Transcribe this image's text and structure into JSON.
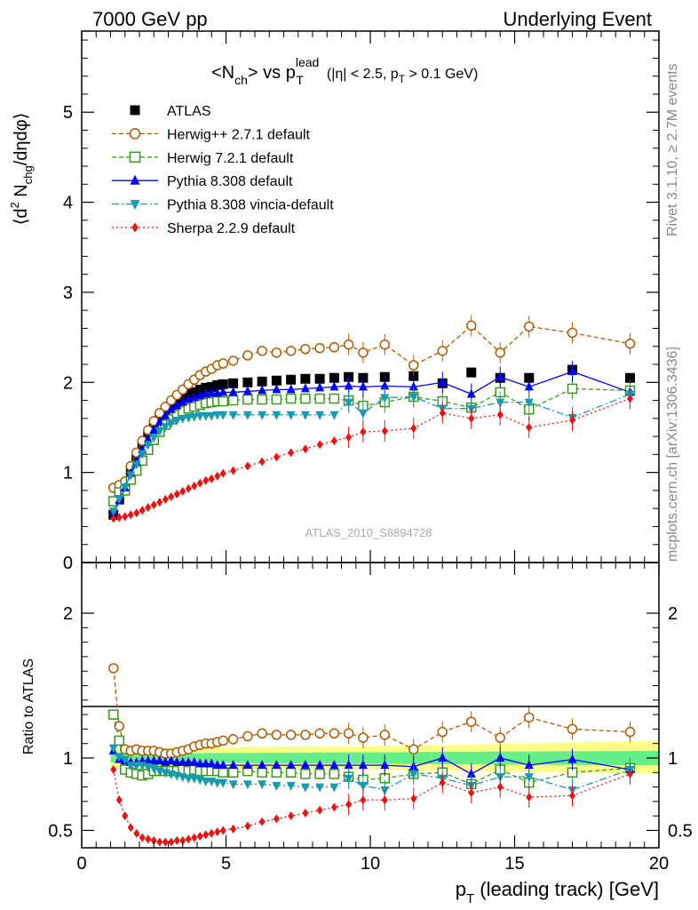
{
  "header": {
    "left": "7000 GeV pp",
    "right": "Underlying Event"
  },
  "side_text": {
    "rivet": "Rivet 3.1.10, ≥ 2.7M events",
    "mcplots": "mcplots.cern.ch [arXiv:1306.3436]"
  },
  "watermark": "ATLAS_2010_S8894728",
  "chart_data": [
    {
      "type": "scatter",
      "title_parts": {
        "main": "<N",
        "main_sub": "ch",
        "mid": "> vs p",
        "sup": "lead",
        "sub": "T",
        "cuts": "(|η| < 2.5, p",
        "cuts_sub": "T",
        "cuts_end": " > 0.1 GeV)"
      },
      "ylabel_parts": {
        "a": "⟨d",
        "sup": "2",
        "b": " N",
        "sub": "chg",
        "c": "/dηdφ⟩"
      },
      "xlim": [
        0,
        20
      ],
      "ylim": [
        0,
        5.9
      ],
      "y_ticks": [
        "0",
        "1",
        "2",
        "3",
        "4",
        "5"
      ],
      "legend_position": "top-left",
      "x": [
        1.1,
        1.3,
        1.5,
        1.7,
        1.9,
        2.1,
        2.3,
        2.5,
        2.7,
        2.9,
        3.1,
        3.3,
        3.5,
        3.7,
        3.9,
        4.1,
        4.3,
        4.5,
        4.7,
        4.9,
        5.25,
        5.75,
        6.25,
        6.75,
        7.25,
        7.75,
        8.25,
        8.75,
        9.25,
        9.75,
        10.5,
        11.5,
        12.5,
        13.5,
        14.5,
        15.5,
        17.0,
        19.0
      ],
      "series": [
        {
          "name": "ATLAS",
          "color": "#000000",
          "marker": "square-filled",
          "values": [
            0.53,
            0.7,
            0.85,
            1.02,
            1.15,
            1.28,
            1.4,
            1.5,
            1.6,
            1.68,
            1.74,
            1.79,
            1.83,
            1.87,
            1.89,
            1.92,
            1.94,
            1.95,
            1.97,
            1.98,
            1.99,
            2.0,
            2.01,
            2.02,
            2.03,
            2.04,
            2.04,
            2.05,
            2.06,
            2.05,
            2.06,
            2.07,
            1.99,
            2.11,
            2.05,
            2.05,
            2.14,
            2.05
          ]
        },
        {
          "name": "Herwig++ 2.7.1 default",
          "color": "#b05a00",
          "marker": "circle-open",
          "values": [
            0.83,
            0.86,
            0.9,
            1.07,
            1.22,
            1.35,
            1.47,
            1.57,
            1.66,
            1.73,
            1.8,
            1.86,
            1.92,
            1.98,
            2.03,
            2.08,
            2.12,
            2.15,
            2.19,
            2.21,
            2.24,
            2.3,
            2.35,
            2.33,
            2.35,
            2.37,
            2.38,
            2.39,
            2.42,
            2.33,
            2.42,
            2.19,
            2.35,
            2.63,
            2.33,
            2.62,
            2.55,
            2.43
          ]
        },
        {
          "name": "Herwig 7.2.1 default",
          "color": "#3c9a1a",
          "marker": "square-open",
          "values": [
            0.68,
            0.78,
            0.8,
            0.92,
            1.02,
            1.13,
            1.25,
            1.36,
            1.45,
            1.53,
            1.59,
            1.64,
            1.68,
            1.71,
            1.73,
            1.75,
            1.77,
            1.78,
            1.79,
            1.79,
            1.8,
            1.81,
            1.81,
            1.81,
            1.82,
            1.82,
            1.82,
            1.82,
            1.8,
            1.74,
            1.78,
            1.84,
            1.79,
            1.72,
            1.89,
            1.7,
            1.93,
            1.91
          ]
        },
        {
          "name": "Pythia 8.308 default",
          "color": "#0000ff",
          "marker": "triangle-up",
          "values": [
            0.56,
            0.69,
            0.83,
            0.99,
            1.12,
            1.25,
            1.37,
            1.47,
            1.56,
            1.63,
            1.7,
            1.74,
            1.78,
            1.81,
            1.83,
            1.85,
            1.87,
            1.88,
            1.88,
            1.89,
            1.89,
            1.9,
            1.91,
            1.92,
            1.92,
            1.93,
            1.94,
            1.95,
            1.96,
            1.95,
            1.96,
            1.95,
            2.0,
            1.87,
            2.06,
            1.95,
            2.12,
            1.89
          ]
        },
        {
          "name": "Pythia 8.308 vincia-default",
          "color": "#1a9ab0",
          "marker": "triangle-down",
          "values": [
            0.57,
            0.71,
            0.84,
            0.97,
            1.09,
            1.21,
            1.31,
            1.39,
            1.46,
            1.51,
            1.55,
            1.58,
            1.6,
            1.61,
            1.62,
            1.63,
            1.63,
            1.63,
            1.64,
            1.64,
            1.64,
            1.64,
            1.64,
            1.64,
            1.64,
            1.64,
            1.64,
            1.64,
            1.78,
            1.66,
            1.83,
            1.84,
            1.71,
            1.71,
            1.78,
            1.78,
            1.61,
            1.87
          ]
        },
        {
          "name": "Sherpa 2.2.9 default",
          "color": "#ee1111",
          "marker": "diamond",
          "values": [
            0.49,
            0.5,
            0.51,
            0.53,
            0.55,
            0.58,
            0.61,
            0.64,
            0.67,
            0.7,
            0.73,
            0.76,
            0.79,
            0.82,
            0.85,
            0.88,
            0.91,
            0.93,
            0.96,
            0.99,
            1.02,
            1.07,
            1.12,
            1.17,
            1.22,
            1.26,
            1.31,
            1.35,
            1.39,
            1.45,
            1.46,
            1.49,
            1.66,
            1.6,
            1.64,
            1.5,
            1.58,
            1.82
          ]
        }
      ]
    },
    {
      "type": "scatter",
      "ylabel": "Ratio to ATLAS",
      "xlabel": "p",
      "xlabel_sub": "T",
      "xlabel_rest": " (leading track) [GeV]",
      "xlim": [
        0,
        20
      ],
      "ylim": [
        0.38,
        2.35
      ],
      "x_ticks": [
        "0",
        "5",
        "10",
        "15",
        "20"
      ],
      "y_ticks": [
        "0.5",
        "1",
        "2"
      ],
      "band_inner_color": "#66ee88",
      "band_outer_color": "#ffff88",
      "x": [
        1.1,
        1.3,
        1.5,
        1.7,
        1.9,
        2.1,
        2.3,
        2.5,
        2.7,
        2.9,
        3.1,
        3.3,
        3.5,
        3.7,
        3.9,
        4.1,
        4.3,
        4.5,
        4.7,
        4.9,
        5.25,
        5.75,
        6.25,
        6.75,
        7.25,
        7.75,
        8.25,
        8.75,
        9.25,
        9.75,
        10.5,
        11.5,
        12.5,
        13.5,
        14.5,
        15.5,
        17.0,
        19.0
      ],
      "series": [
        {
          "name": "Herwig++ 2.7.1 default",
          "color": "#b05a00",
          "marker": "circle-open",
          "values": [
            1.62,
            1.22,
            1.06,
            1.05,
            1.06,
            1.05,
            1.05,
            1.05,
            1.04,
            1.03,
            1.03,
            1.04,
            1.05,
            1.06,
            1.08,
            1.09,
            1.1,
            1.1,
            1.11,
            1.12,
            1.13,
            1.15,
            1.17,
            1.16,
            1.16,
            1.16,
            1.17,
            1.17,
            1.17,
            1.14,
            1.16,
            1.06,
            1.18,
            1.25,
            1.14,
            1.28,
            1.2,
            1.18
          ]
        },
        {
          "name": "Herwig 7.2.1 default",
          "color": "#3c9a1a",
          "marker": "square-open",
          "values": [
            1.3,
            1.12,
            0.92,
            0.9,
            0.89,
            0.88,
            0.89,
            0.91,
            0.91,
            0.91,
            0.91,
            0.91,
            0.92,
            0.91,
            0.92,
            0.91,
            0.91,
            0.91,
            0.91,
            0.9,
            0.9,
            0.91,
            0.9,
            0.9,
            0.9,
            0.89,
            0.89,
            0.89,
            0.87,
            0.85,
            0.86,
            0.89,
            0.9,
            0.82,
            0.92,
            0.83,
            0.9,
            0.93
          ]
        },
        {
          "name": "Pythia 8.308 default",
          "color": "#0000ff",
          "marker": "triangle-up",
          "values": [
            1.05,
            0.99,
            0.98,
            0.97,
            0.97,
            0.98,
            0.98,
            0.98,
            0.98,
            0.97,
            0.98,
            0.97,
            0.97,
            0.97,
            0.97,
            0.96,
            0.96,
            0.96,
            0.95,
            0.95,
            0.95,
            0.95,
            0.95,
            0.95,
            0.95,
            0.95,
            0.95,
            0.95,
            0.95,
            0.95,
            0.95,
            0.94,
            1.0,
            0.89,
            1.0,
            0.95,
            0.99,
            0.92
          ]
        },
        {
          "name": "Pythia 8.308 vincia-default",
          "color": "#1a9ab0",
          "marker": "triangle-down",
          "values": [
            1.07,
            1.01,
            0.99,
            0.95,
            0.95,
            0.95,
            0.94,
            0.93,
            0.91,
            0.9,
            0.89,
            0.88,
            0.87,
            0.86,
            0.86,
            0.85,
            0.84,
            0.84,
            0.83,
            0.83,
            0.82,
            0.82,
            0.82,
            0.81,
            0.81,
            0.8,
            0.8,
            0.8,
            0.86,
            0.81,
            0.78,
            0.89,
            0.86,
            0.81,
            0.87,
            0.87,
            0.78,
            0.92
          ]
        },
        {
          "name": "Sherpa 2.2.9 default",
          "color": "#ee1111",
          "marker": "diamond",
          "values": [
            0.92,
            0.71,
            0.6,
            0.52,
            0.48,
            0.45,
            0.44,
            0.43,
            0.42,
            0.42,
            0.42,
            0.43,
            0.43,
            0.44,
            0.45,
            0.46,
            0.47,
            0.48,
            0.49,
            0.5,
            0.51,
            0.53,
            0.56,
            0.58,
            0.6,
            0.62,
            0.64,
            0.66,
            0.68,
            0.71,
            0.71,
            0.72,
            0.83,
            0.76,
            0.8,
            0.73,
            0.74,
            0.89
          ]
        }
      ]
    }
  ]
}
